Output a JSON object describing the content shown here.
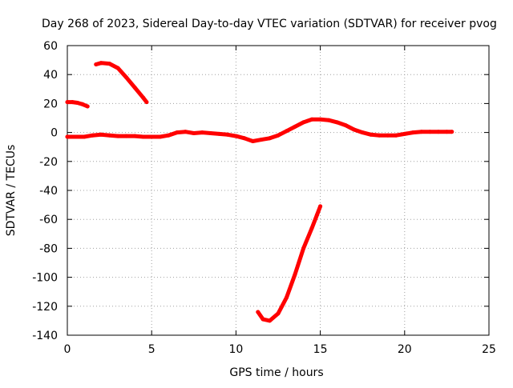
{
  "chart_data": {
    "type": "line",
    "title": "Day 268 of 2023, Sidereal Day-to-day VTEC variation (SDTVAR) for receiver pvog",
    "xlabel": "GPS time / hours",
    "ylabel": "SDTVAR / TECUs",
    "xlim": [
      0,
      25
    ],
    "ylim": [
      -140,
      60
    ],
    "xticks": [
      0,
      5,
      10,
      15,
      20,
      25
    ],
    "yticks": [
      -140,
      -120,
      -100,
      -80,
      -60,
      -40,
      -20,
      0,
      20,
      40,
      60
    ],
    "grid": true,
    "legend": "none",
    "line_color": "#ff0000",
    "series": [
      {
        "name": "main-trace",
        "x": [
          0.0,
          0.5,
          1.0,
          1.5,
          2.0,
          2.5,
          3.0,
          3.5,
          4.0,
          4.5,
          5.0,
          5.5,
          6.0,
          6.5,
          7.0,
          7.5,
          8.0,
          8.5,
          9.0,
          9.5,
          10.0,
          10.5,
          11.0,
          11.5,
          12.0,
          12.5,
          13.0,
          13.5,
          14.0,
          14.5,
          15.0,
          15.5,
          16.0,
          16.5,
          17.0,
          17.5,
          18.0,
          18.5,
          19.0,
          19.5,
          20.0,
          20.5,
          21.0,
          21.5,
          22.0,
          22.5,
          22.8
        ],
        "y": [
          -3,
          -3,
          -3,
          -2,
          -1.5,
          -2,
          -2.5,
          -2.5,
          -2.5,
          -3,
          -3,
          -3,
          -2,
          0,
          0.5,
          -0.5,
          0,
          -0.5,
          -1,
          -1.5,
          -2.5,
          -4,
          -6,
          -5,
          -4,
          -2,
          1,
          4,
          7,
          9,
          9,
          8.5,
          7,
          5,
          2,
          0,
          -1.5,
          -2,
          -2,
          -2,
          -1,
          0,
          0.5,
          0.5,
          0.5,
          0.5,
          0.5
        ]
      },
      {
        "name": "segment-start",
        "x": [
          0.0,
          0.3,
          0.6,
          0.9,
          1.2
        ],
        "y": [
          21,
          21,
          20.5,
          19.5,
          18
        ]
      },
      {
        "name": "segment-arc",
        "x": [
          1.7,
          2.0,
          2.5,
          3.0,
          3.5,
          4.0,
          4.5,
          4.7
        ],
        "y": [
          47,
          48,
          47.5,
          44.5,
          38,
          31,
          24,
          21
        ]
      },
      {
        "name": "segment-dip",
        "x": [
          11.3,
          11.6,
          12.0,
          12.5,
          13.0,
          13.5,
          14.0,
          14.5,
          14.8,
          15.0
        ],
        "y": [
          -124,
          -129,
          -130,
          -125,
          -114,
          -98,
          -80,
          -66,
          -57,
          -51
        ]
      }
    ]
  }
}
